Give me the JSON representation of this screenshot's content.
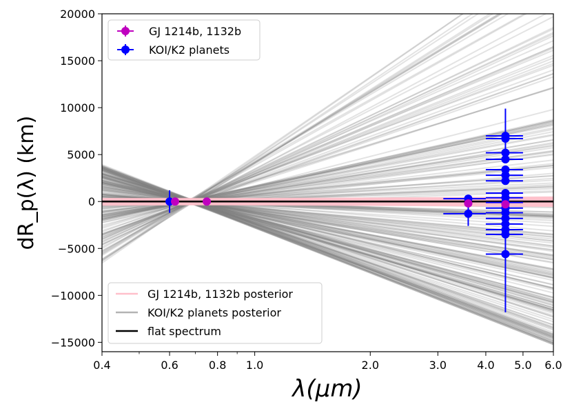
{
  "chart_data": {
    "type": "scatter",
    "xscale": "log",
    "xlim": [
      0.4,
      6.0
    ],
    "ylim": [
      -16000,
      20000
    ],
    "xlabel": "λ(μm)",
    "ylabel": "dR_p(λ) (km)",
    "x_ticks": [
      {
        "value": 0.4,
        "label": "0.4"
      },
      {
        "value": 0.6,
        "label": "0.6"
      },
      {
        "value": 0.8,
        "label": "0.8"
      },
      {
        "value": 1.0,
        "label": "1.0"
      },
      {
        "value": 2.0,
        "label": "2.0"
      },
      {
        "value": 3.0,
        "label": "3.0"
      },
      {
        "value": 4.0,
        "label": "4.0"
      },
      {
        "value": 5.0,
        "label": "5.0"
      },
      {
        "value": 6.0,
        "label": "6.0"
      }
    ],
    "y_ticks": [
      {
        "value": 20000,
        "label": "20000"
      },
      {
        "value": 15000,
        "label": "15000"
      },
      {
        "value": 10000,
        "label": "10000"
      },
      {
        "value": 5000,
        "label": "5000"
      },
      {
        "value": 0,
        "label": "0"
      },
      {
        "value": -5000,
        "label": "−5000"
      },
      {
        "value": -10000,
        "label": "−10000"
      },
      {
        "value": -15000,
        "label": "−15000"
      }
    ],
    "series": [
      {
        "name": "GJ 1214b, 1132b",
        "color": "#bf00bf",
        "points": [
          {
            "x": 0.62,
            "y": 0,
            "xerr": 0,
            "yerr": 150
          },
          {
            "x": 0.75,
            "y": 0,
            "xerr": 0,
            "yerr": 120
          },
          {
            "x": 3.6,
            "y": -200,
            "xerr": 0,
            "yerr": 300
          },
          {
            "x": 4.5,
            "y": -300,
            "xerr": 0,
            "yerr": 300
          }
        ]
      },
      {
        "name": "KOI/K2 planets",
        "color": "#0000ff",
        "points": [
          {
            "x": 0.6,
            "y": 0,
            "xerr": 0.0,
            "yerr": 1200
          },
          {
            "x": 3.6,
            "y": 300,
            "xerr_lo": 0.5,
            "xerr_hi": 0.4,
            "yerr": 400
          },
          {
            "x": 3.6,
            "y": -1300,
            "xerr_lo": 0.5,
            "xerr_hi": 0.4,
            "yerr": 1300
          },
          {
            "x": 4.5,
            "y": 7000,
            "xerr_lo": 0.5,
            "xerr_hi": 0.5,
            "yerr": 2900
          },
          {
            "x": 4.5,
            "y": 6700,
            "xerr_lo": 0.5,
            "xerr_hi": 0.5,
            "yerr": 300
          },
          {
            "x": 4.5,
            "y": 5200,
            "xerr_lo": 0.5,
            "xerr_hi": 0.5,
            "yerr": 300
          },
          {
            "x": 4.5,
            "y": 4500,
            "xerr_lo": 0.5,
            "xerr_hi": 0.5,
            "yerr": 300
          },
          {
            "x": 4.5,
            "y": 3400,
            "xerr_lo": 0.5,
            "xerr_hi": 0.5,
            "yerr": 300
          },
          {
            "x": 4.5,
            "y": 2800,
            "xerr_lo": 0.5,
            "xerr_hi": 0.5,
            "yerr": 300
          },
          {
            "x": 4.5,
            "y": 2200,
            "xerr_lo": 0.5,
            "xerr_hi": 0.5,
            "yerr": 300
          },
          {
            "x": 4.5,
            "y": 900,
            "xerr_lo": 0.5,
            "xerr_hi": 0.5,
            "yerr": 300
          },
          {
            "x": 4.5,
            "y": 400,
            "xerr_lo": 0.5,
            "xerr_hi": 0.5,
            "yerr": 300
          },
          {
            "x": 4.5,
            "y": -100,
            "xerr_lo": 0.5,
            "xerr_hi": 0.5,
            "yerr": 300
          },
          {
            "x": 4.5,
            "y": -700,
            "xerr_lo": 0.5,
            "xerr_hi": 0.5,
            "yerr": 300
          },
          {
            "x": 4.5,
            "y": -1200,
            "xerr_lo": 0.5,
            "xerr_hi": 0.5,
            "yerr": 300
          },
          {
            "x": 4.5,
            "y": -1800,
            "xerr_lo": 0.5,
            "xerr_hi": 0.5,
            "yerr": 300
          },
          {
            "x": 4.5,
            "y": -2400,
            "xerr_lo": 0.5,
            "xerr_hi": 0.5,
            "yerr": 300
          },
          {
            "x": 4.5,
            "y": -3000,
            "xerr_lo": 0.5,
            "xerr_hi": 0.5,
            "yerr": 300
          },
          {
            "x": 4.5,
            "y": -3500,
            "xerr_lo": 0.5,
            "xerr_hi": 0.5,
            "yerr": 300
          },
          {
            "x": 4.5,
            "y": -5600,
            "xerr_lo": 0.5,
            "xerr_hi": 0.5,
            "yerr": 6200
          }
        ]
      }
    ],
    "posterior_lines": {
      "count": 220,
      "x_anchor": 0.68,
      "slope_range_per_log10": [
        -16000,
        30000
      ],
      "intercept_jitter": 250,
      "color": "#808080",
      "opacity": 0.22
    },
    "pink_band": {
      "color": "#ffc0cb",
      "x_anchor": 0.68,
      "y_half_width": 300,
      "slope_range_per_log10": [
        -300,
        300
      ]
    },
    "flat_spectrum": {
      "y": 0,
      "color": "#000000"
    },
    "legend_top": {
      "placement": "top-left",
      "entries": [
        {
          "label": "GJ 1214b, 1132b",
          "color": "#bf00bf"
        },
        {
          "label": "KOI/K2 planets",
          "color": "#0000ff"
        }
      ]
    },
    "legend_bottom": {
      "placement": "bottom-left",
      "entries": [
        {
          "label": "GJ 1214b, 1132b posterior",
          "color": "#ffc0cb"
        },
        {
          "label": "KOI/K2 planets posterior",
          "color": "#b3b3b3"
        },
        {
          "label": "flat spectrum",
          "color": "#000000"
        }
      ]
    }
  }
}
